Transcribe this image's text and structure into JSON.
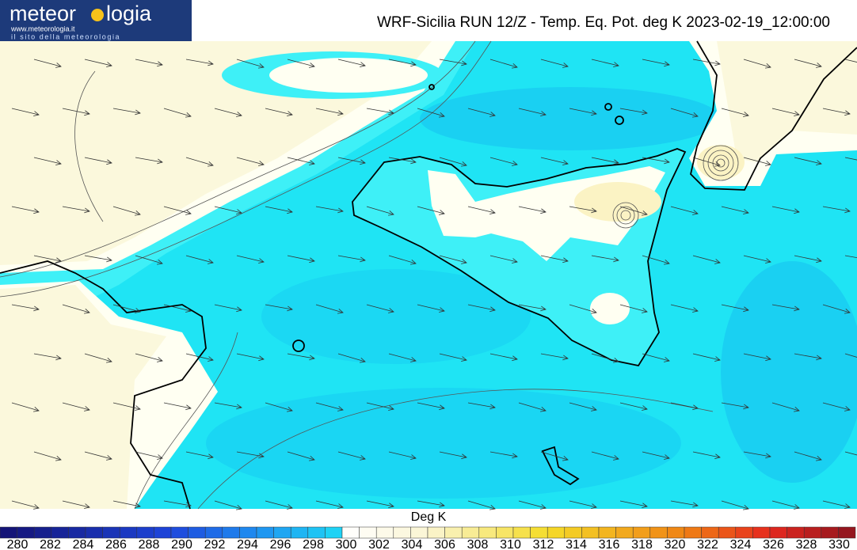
{
  "header": {
    "logo": {
      "name_start": "meteor",
      "name_end": "logia",
      "url": "www.meteorologia.it",
      "tagline": "il sito della meteorologia"
    },
    "title": "WRF-Sicilia RUN 12/Z - Temp. Eq. Pot. deg K 2023-02-19_12:00:00"
  },
  "colorbar": {
    "label": "Deg K",
    "ticks": [
      280,
      282,
      284,
      286,
      288,
      290,
      292,
      294,
      296,
      298,
      300,
      302,
      304,
      306,
      308,
      310,
      312,
      314,
      316,
      318,
      320,
      322,
      324,
      326,
      328,
      330
    ]
  }
}
